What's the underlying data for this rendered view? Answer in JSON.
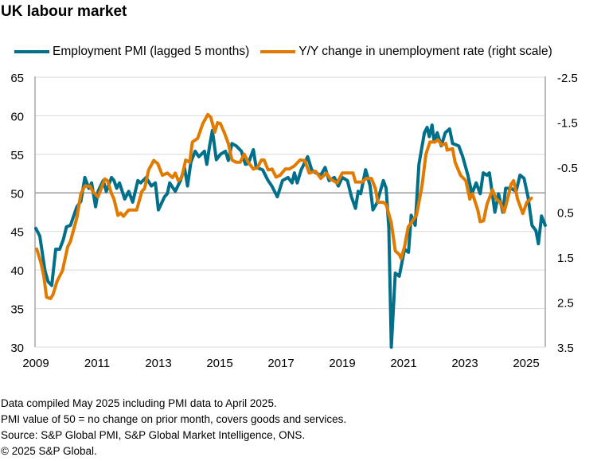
{
  "title": "UK labour market",
  "footer": [
    "Data compiled May 2025 including PMI data to April 2025.",
    "PMI value of 50 = no change on prior month, covers goods and services.",
    "Source: S&P Global PMI, S&P Global Market Intelligence, ONS.",
    "© 2025 S&P Global."
  ],
  "chart_data": {
    "type": "line",
    "title": "UK labour market",
    "legend_placement": "top",
    "x_ticks": [
      "2009",
      "2011",
      "2013",
      "2015",
      "2017",
      "2019",
      "2021",
      "2023",
      "2025"
    ],
    "xlim": [
      2009,
      2025.7
    ],
    "y_left": {
      "ticks": [
        "65",
        "60",
        "55",
        "50",
        "45",
        "40",
        "35",
        "30"
      ],
      "ylim": [
        30,
        65
      ],
      "reference_line": 50
    },
    "y_right": {
      "ticks": [
        "-2.5",
        "-1.5",
        "-0.5",
        "0.5",
        "1.5",
        "2.5",
        "3.5"
      ],
      "ylim": [
        -2.5,
        3.5
      ],
      "inverted": true
    },
    "grid": true,
    "series": [
      {
        "name": "Employment PMI (lagged 5 months)",
        "axis": "left",
        "color": "#006f8a",
        "x": [
          2009.0,
          2009.13,
          2009.3,
          2009.4,
          2009.52,
          2009.65,
          2009.78,
          2009.9,
          2010.0,
          2010.13,
          2010.34,
          2010.47,
          2010.6,
          2010.73,
          2010.82,
          2010.95,
          2011.03,
          2011.2,
          2011.3,
          2011.47,
          2011.55,
          2011.64,
          2011.73,
          2011.9,
          2012.03,
          2012.16,
          2012.33,
          2012.42,
          2012.6,
          2012.77,
          2012.9,
          2013.0,
          2013.2,
          2013.29,
          2013.37,
          2013.55,
          2013.72,
          2013.85,
          2013.95,
          2014.06,
          2014.2,
          2014.32,
          2014.5,
          2014.58,
          2014.67,
          2014.76,
          2014.89,
          2015.02,
          2015.19,
          2015.28,
          2015.4,
          2015.54,
          2015.71,
          2015.84,
          2015.93,
          2016.1,
          2016.19,
          2016.4,
          2016.58,
          2016.7,
          2016.88,
          2017.05,
          2017.23,
          2017.36,
          2017.44,
          2017.53,
          2017.66,
          2017.87,
          2018.0,
          2018.13,
          2018.3,
          2018.44,
          2018.57,
          2018.74,
          2018.87,
          2019.0,
          2019.17,
          2019.3,
          2019.43,
          2019.52,
          2019.6,
          2019.76,
          2019.91,
          2020.0,
          2020.13,
          2020.34,
          2020.43,
          2020.52,
          2020.6,
          2020.73,
          2020.86,
          2021.03,
          2021.16,
          2021.25,
          2021.38,
          2021.5,
          2021.68,
          2021.77,
          2021.84,
          2021.93,
          2022.0,
          2022.1,
          2022.23,
          2022.36,
          2022.5,
          2022.6,
          2022.8,
          2022.93,
          2023.1,
          2023.23,
          2023.37,
          2023.5,
          2023.6,
          2023.72,
          2023.8,
          2023.98,
          2024.1,
          2024.24,
          2024.33,
          2024.5,
          2024.67,
          2024.8,
          2024.93,
          2025.06,
          2025.19,
          2025.32,
          2025.4,
          2025.5,
          2025.62
        ],
        "y": [
          45.4,
          44.4,
          39.9,
          38.5,
          38.0,
          42.7,
          42.7,
          44.0,
          45.6,
          45.8,
          48.2,
          48.9,
          52.0,
          50.6,
          51.3,
          48.2,
          50.2,
          51.6,
          50.2,
          52.0,
          51.6,
          50.6,
          51.3,
          49.2,
          50.2,
          48.8,
          51.6,
          51.3,
          52.0,
          50.9,
          51.3,
          47.8,
          49.5,
          49.9,
          51.3,
          50.2,
          51.6,
          53.3,
          50.9,
          54.0,
          55.4,
          54.7,
          55.4,
          53.7,
          56.1,
          58.1,
          54.3,
          55.0,
          55.4,
          54.2,
          56.4,
          56.1,
          55.4,
          53.7,
          53.8,
          55.6,
          53.3,
          53.0,
          51.6,
          50.9,
          49.5,
          51.6,
          52.0,
          51.3,
          52.6,
          51.3,
          53.0,
          54.7,
          53.0,
          52.6,
          52.3,
          53.3,
          51.6,
          52.0,
          50.9,
          52.0,
          51.6,
          49.5,
          48.0,
          50.2,
          49.9,
          53.0,
          50.9,
          47.8,
          48.7,
          51.6,
          50.6,
          45.4,
          30.0,
          39.6,
          39.2,
          42.7,
          42.3,
          47.1,
          45.8,
          53.7,
          57.8,
          58.5,
          57.3,
          58.8,
          56.6,
          57.8,
          56.1,
          57.8,
          58.3,
          56.4,
          56.1,
          54.7,
          52.3,
          49.9,
          51.3,
          49.9,
          52.6,
          52.3,
          52.6,
          47.5,
          49.9,
          47.5,
          50.6,
          50.6,
          50.2,
          52.3,
          51.9,
          49.5,
          45.8,
          45.1,
          43.4,
          47.0,
          45.8
        ]
      },
      {
        "name": "Y/Y change in unemployment rate (right scale)",
        "axis": "right",
        "color": "#e07b00",
        "x": [
          2009.03,
          2009.17,
          2009.26,
          2009.35,
          2009.48,
          2009.56,
          2009.69,
          2009.87,
          2010.04,
          2010.13,
          2010.34,
          2010.47,
          2010.6,
          2010.77,
          2010.86,
          2011.03,
          2011.25,
          2011.34,
          2011.47,
          2011.55,
          2011.68,
          2011.77,
          2011.86,
          2012.03,
          2012.16,
          2012.29,
          2012.46,
          2012.55,
          2012.68,
          2012.85,
          2012.98,
          2013.13,
          2013.29,
          2013.46,
          2013.55,
          2013.65,
          2013.76,
          2013.89,
          2014.02,
          2014.11,
          2014.28,
          2014.45,
          2014.61,
          2014.71,
          2014.84,
          2014.93,
          2015.02,
          2015.15,
          2015.28,
          2015.4,
          2015.54,
          2015.67,
          2015.8,
          2015.93,
          2016.1,
          2016.23,
          2016.36,
          2016.45,
          2016.58,
          2016.71,
          2016.84,
          2016.97,
          2017.14,
          2017.27,
          2017.44,
          2017.62,
          2017.78,
          2017.92,
          2018.13,
          2018.3,
          2018.48,
          2018.61,
          2018.83,
          2019.0,
          2019.35,
          2019.43,
          2019.65,
          2019.78,
          2019.95,
          2020.08,
          2020.16,
          2020.34,
          2020.43,
          2020.6,
          2020.73,
          2020.86,
          2020.92,
          2021.03,
          2021.15,
          2021.29,
          2021.42,
          2021.6,
          2021.73,
          2021.86,
          2022.03,
          2022.12,
          2022.25,
          2022.38,
          2022.42,
          2022.6,
          2022.68,
          2022.86,
          2023.03,
          2023.16,
          2023.25,
          2023.42,
          2023.5,
          2023.61,
          2023.72,
          2023.9,
          2024.02,
          2024.15,
          2024.28,
          2024.41,
          2024.5,
          2024.59,
          2024.72,
          2024.89,
          2025.02,
          2025.17
        ],
        "y": [
          1.32,
          1.63,
          1.92,
          2.39,
          2.42,
          2.33,
          2.04,
          1.8,
          1.27,
          1.15,
          0.62,
          0.09,
          -0.08,
          -0.08,
          0.04,
          0.16,
          -0.24,
          -0.2,
          0.09,
          0.21,
          0.57,
          0.52,
          0.59,
          0.45,
          0.45,
          0.45,
          0.04,
          -0.03,
          -0.44,
          -0.65,
          -0.58,
          -0.32,
          -0.37,
          -0.27,
          -0.37,
          -0.2,
          -0.27,
          -0.66,
          -0.61,
          -1.06,
          -1.14,
          -1.47,
          -1.67,
          -1.61,
          -1.28,
          -1.49,
          -1.47,
          -1.27,
          -1.03,
          -0.66,
          -0.61,
          -0.61,
          -0.79,
          -0.61,
          -0.46,
          -0.49,
          -0.66,
          -0.66,
          -0.44,
          -0.46,
          -0.28,
          -0.32,
          -0.46,
          -0.46,
          -0.53,
          -0.66,
          -0.65,
          -0.37,
          -0.41,
          -0.25,
          -0.37,
          -0.24,
          -0.15,
          -0.37,
          -0.37,
          -0.17,
          -0.17,
          -0.25,
          -0.25,
          -0.03,
          0.28,
          0.28,
          0.33,
          0.74,
          1.36,
          1.44,
          1.53,
          1.27,
          0.83,
          0.69,
          0.57,
          -0.08,
          -0.79,
          -1.06,
          -1.06,
          -1.11,
          -0.99,
          -1.03,
          -0.88,
          -0.91,
          -0.61,
          -0.32,
          -0.2,
          0.21,
          0.09,
          0.45,
          0.71,
          0.69,
          0.33,
          0.0,
          0.21,
          0.28,
          0.5,
          0.16,
          -0.11,
          -0.2,
          0.21,
          0.53,
          0.28,
          0.19
        ]
      }
    ]
  }
}
